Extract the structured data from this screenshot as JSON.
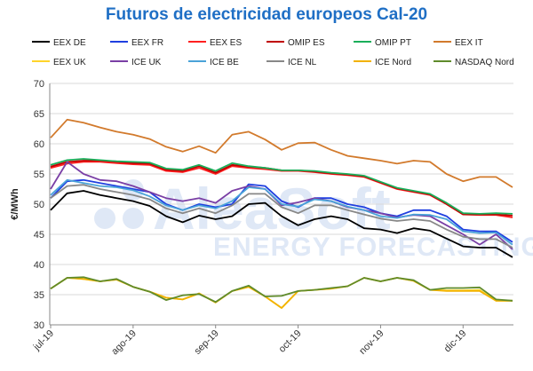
{
  "chart_data": {
    "type": "line",
    "title": "Futuros de electricidad europeos Cal-20",
    "ylabel": "€/MWh",
    "xlabel": "",
    "ylim": [
      30,
      70
    ],
    "yticks": [
      30,
      35,
      40,
      45,
      50,
      55,
      60,
      65,
      70
    ],
    "x_tick_labels": [
      "jul-19",
      "ago-19",
      "sep-19",
      "oct-19",
      "nov-19",
      "dic-19"
    ],
    "grid": true,
    "legend_position": "top",
    "watermark": [
      "AleaSoft",
      "ENERGY FORECASTING"
    ],
    "weeks": 29,
    "series": [
      {
        "name": "EEX DE",
        "color": "#000000",
        "values": [
          49,
          51.8,
          52.2,
          51.5,
          51,
          50.5,
          49.7,
          48,
          47,
          48.1,
          47.5,
          48,
          50,
          50.2,
          48,
          46.5,
          47.5,
          48,
          47.5,
          46,
          45.8,
          45.2,
          46,
          45.6,
          44.3,
          43,
          42.8,
          42.8,
          41.2
        ]
      },
      {
        "name": "EEX FR",
        "color": "#1f3fe0",
        "values": [
          51,
          53.8,
          54,
          53.5,
          53,
          52.5,
          52,
          50,
          49,
          50,
          49.5,
          50,
          53.3,
          53,
          50.5,
          49.5,
          51,
          51,
          50,
          49.5,
          48.5,
          48,
          49,
          49,
          48,
          45.8,
          45.5,
          45.5,
          43.7
        ]
      },
      {
        "name": "EEX ES",
        "color": "#ff2020",
        "values": [
          56,
          56.7,
          57,
          57,
          56.8,
          56.6,
          56.5,
          55.5,
          55.3,
          56,
          55,
          56.3,
          56,
          55.8,
          55.5,
          55.5,
          55.3,
          55,
          54.8,
          54.5,
          53.5,
          52.5,
          52,
          51.5,
          50,
          48.3,
          48.2,
          48.2,
          47.8
        ]
      },
      {
        "name": "OMIP ES",
        "color": "#c00000",
        "values": [
          56.2,
          57,
          57.2,
          57.2,
          57,
          56.8,
          56.7,
          55.7,
          55.5,
          56.3,
          55.2,
          56.5,
          56.2,
          56,
          55.6,
          55.6,
          55.4,
          55.1,
          54.9,
          54.6,
          53.6,
          52.6,
          52.1,
          51.6,
          50,
          48.3,
          48.3,
          48.3,
          48.1
        ]
      },
      {
        "name": "OMIP PT",
        "color": "#1aae5a",
        "values": [
          56.5,
          57.3,
          57.5,
          57.3,
          57.1,
          57,
          56.9,
          55.9,
          55.7,
          56.5,
          55.5,
          56.8,
          56.3,
          56,
          55.6,
          55.6,
          55.5,
          55.2,
          55,
          54.7,
          53.7,
          52.7,
          52.2,
          51.7,
          50.2,
          48.5,
          48.4,
          48.5,
          48.4
        ]
      },
      {
        "name": "EEX IT",
        "color": "#d27a2c",
        "values": [
          61,
          64,
          63.5,
          62.7,
          62,
          61.5,
          60.8,
          59.5,
          58.7,
          59.6,
          58.5,
          61.5,
          62,
          60.7,
          59,
          60.1,
          60.2,
          59,
          58,
          57.6,
          57.2,
          56.7,
          57.2,
          57,
          55,
          53.8,
          54.5,
          54.5,
          52.8
        ]
      },
      {
        "name": "EEX UK",
        "color": "#ffd42a",
        "values": [
          36,
          37.8,
          37.6,
          37.2,
          37.5,
          36.3,
          35.5,
          34.5,
          34.2,
          35.2,
          33.7,
          35.6,
          36.3,
          34.7,
          32.8,
          35.6,
          35.8,
          36,
          36.4,
          37.8,
          37.2,
          37.8,
          37.3,
          35.8,
          35.7,
          35.7,
          35.8,
          34,
          34
        ]
      },
      {
        "name": "ICE UK",
        "color": "#7a3fa5",
        "values": [
          52.5,
          57,
          55,
          54,
          53.8,
          53,
          52,
          51,
          50.5,
          51,
          50.2,
          52.2,
          53,
          52.5,
          49.8,
          50.3,
          51,
          50.5,
          49.5,
          49,
          48.5,
          47.8,
          48.2,
          48,
          46.5,
          45,
          43.3,
          45,
          42.5
        ]
      },
      {
        "name": "ICE BE",
        "color": "#4aa3d8",
        "values": [
          51.5,
          54,
          53.5,
          53,
          52.8,
          52.3,
          51.3,
          49.8,
          49,
          49.8,
          49.3,
          50.5,
          52.8,
          52.5,
          50,
          49.6,
          50.8,
          50.5,
          49.6,
          49,
          48,
          47.7,
          48.3,
          48.2,
          47.5,
          45.5,
          45.2,
          45.3,
          43.3
        ]
      },
      {
        "name": "ICE NL",
        "color": "#888888",
        "values": [
          51,
          53,
          53.2,
          52.5,
          52,
          51.5,
          50.8,
          49.3,
          48.5,
          49.3,
          48.5,
          49.8,
          51.7,
          51.7,
          49.5,
          48.5,
          49.8,
          49.8,
          49,
          48.3,
          47.6,
          47.2,
          47.5,
          47.2,
          45.8,
          44.6,
          44.2,
          44.2,
          42.8
        ]
      },
      {
        "name": "ICE Nord",
        "color": "#f2b200",
        "values": [
          36,
          37.8,
          37.6,
          37.2,
          37.5,
          36.3,
          35.5,
          34.5,
          34.2,
          35.2,
          33.7,
          35.6,
          36.3,
          34.7,
          32.8,
          35.6,
          35.8,
          36,
          36.4,
          37.8,
          37.2,
          37.8,
          37.3,
          35.8,
          35.6,
          35.6,
          35.6,
          34,
          34
        ]
      },
      {
        "name": "NASDAQ Nord",
        "color": "#5f8b2b",
        "values": [
          36,
          37.8,
          37.9,
          37.2,
          37.6,
          36.3,
          35.5,
          34.1,
          34.9,
          35.1,
          33.8,
          35.6,
          36.5,
          34.7,
          34.8,
          35.6,
          35.8,
          36.1,
          36.4,
          37.8,
          37.2,
          37.8,
          37.4,
          35.8,
          36.1,
          36.1,
          36.2,
          34.2,
          34
        ]
      }
    ]
  }
}
